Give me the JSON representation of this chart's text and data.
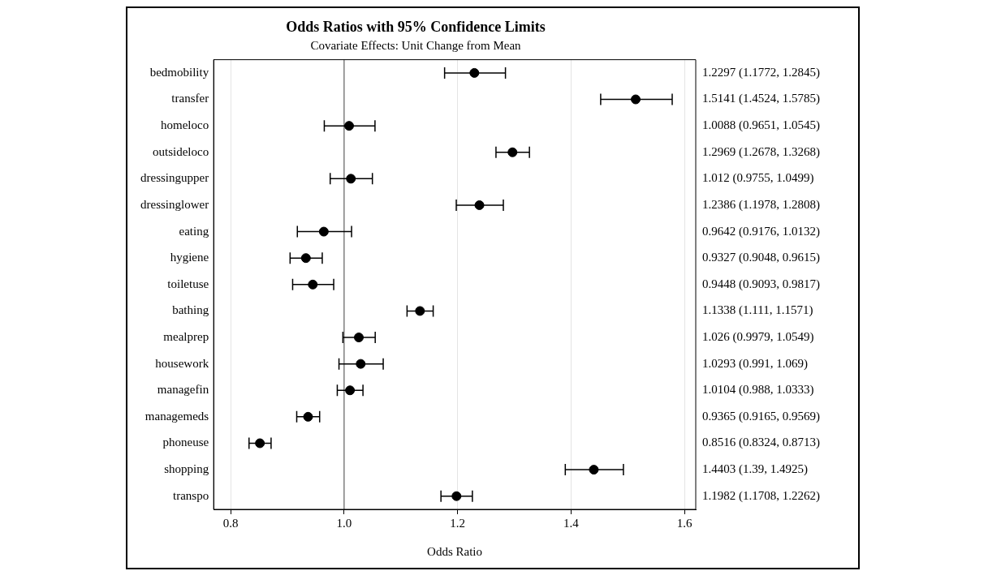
{
  "chart_data": {
    "type": "scatter",
    "orientation": "horizontal",
    "title": "Odds Ratios with 95% Confidence Limits",
    "subtitle": "Covariate Effects: Unit Change from Mean",
    "xlabel": "Odds Ratio",
    "categories": [
      "bedmobility",
      "transfer",
      "homeloco",
      "outsideloco",
      "dressingupper",
      "dressinglower",
      "eating",
      "hygiene",
      "toiletuse",
      "bathing",
      "mealprep",
      "housework",
      "managefin",
      "managemeds",
      "phoneuse",
      "shopping",
      "transpo"
    ],
    "values": [
      1.2297,
      1.5141,
      1.0088,
      1.2969,
      1.012,
      1.2386,
      0.9642,
      0.9327,
      0.9448,
      1.1338,
      1.026,
      1.0293,
      1.0104,
      0.9365,
      0.8516,
      1.4403,
      1.1982
    ],
    "errors": [
      [
        1.1772,
        1.2845
      ],
      [
        1.4524,
        1.5785
      ],
      [
        0.9651,
        1.0545
      ],
      [
        1.2678,
        1.3268
      ],
      [
        0.9755,
        1.0499
      ],
      [
        1.1978,
        1.2808
      ],
      [
        0.9176,
        1.0132
      ],
      [
        0.9048,
        0.9615
      ],
      [
        0.9093,
        0.9817
      ],
      [
        1.111,
        1.1571
      ],
      [
        0.9979,
        1.0549
      ],
      [
        0.991,
        1.069
      ],
      [
        0.988,
        1.0333
      ],
      [
        0.9165,
        0.9569
      ],
      [
        0.8324,
        0.8713
      ],
      [
        1.39,
        1.4925
      ],
      [
        1.1708,
        1.2262
      ]
    ],
    "annotations": [
      "1.2297 (1.1772, 1.2845)",
      "1.5141 (1.4524, 1.5785)",
      "1.0088 (0.9651, 1.0545)",
      "1.2969 (1.2678, 1.3268)",
      "1.012 (0.9755, 1.0499)",
      "1.2386 (1.1978, 1.2808)",
      "0.9642 (0.9176, 1.0132)",
      "0.9327 (0.9048, 0.9615)",
      "0.9448 (0.9093, 0.9817)",
      "1.1338 (1.111, 1.1571)",
      "1.026 (0.9979, 1.0549)",
      "1.0293 (0.991, 1.069)",
      "1.0104 (0.988, 1.0333)",
      "0.9365 (0.9165, 0.9569)",
      "0.8516 (0.8324, 0.8713)",
      "1.4403 (1.39, 1.4925)",
      "1.1982 (1.1708, 1.2262)"
    ],
    "color": "#000000",
    "marker": "circle",
    "xlim": [
      0.77,
      1.62
    ],
    "xticks": [
      {
        "value": 0.8,
        "label": "0.8"
      },
      {
        "value": 1.0,
        "label": "1.0"
      },
      {
        "value": 1.2,
        "label": "1.2"
      },
      {
        "value": 1.4,
        "label": "1.4"
      },
      {
        "value": 1.6,
        "label": "1.6"
      }
    ],
    "grid": "x",
    "legend": false,
    "ref_lines": [
      {
        "axis": "x",
        "value": 1,
        "color": "#808080"
      }
    ]
  }
}
